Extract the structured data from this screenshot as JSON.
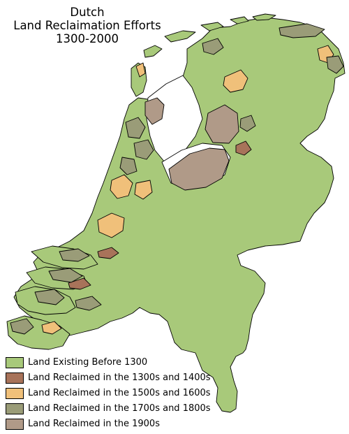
{
  "title": {
    "line1": "Dutch",
    "line2": "Land Reclaimation Efforts",
    "line3": "1300-2000"
  },
  "colors": {
    "before_1300": "#a8c97a",
    "c1300_1400": "#a8735a",
    "c1500_1600": "#f0c07a",
    "c1700_1800": "#9a9c78",
    "c1900": "#b09a88",
    "water": "#ffffff",
    "outline": "#000000"
  },
  "legend": [
    {
      "label": "Land Existing Before 1300",
      "color": "#a8c97a"
    },
    {
      "label": "Land Reclaimed in the 1300s and 1400s",
      "color": "#a8735a"
    },
    {
      "label": "Land Reclaimed in the 1500s and 1600s",
      "color": "#f0c07a"
    },
    {
      "label": "Land Reclaimed in the 1700s and 1800s",
      "color": "#9a9c78"
    },
    {
      "label": "Land Reclaimed in the 1900s",
      "color": "#b09a88"
    }
  ]
}
